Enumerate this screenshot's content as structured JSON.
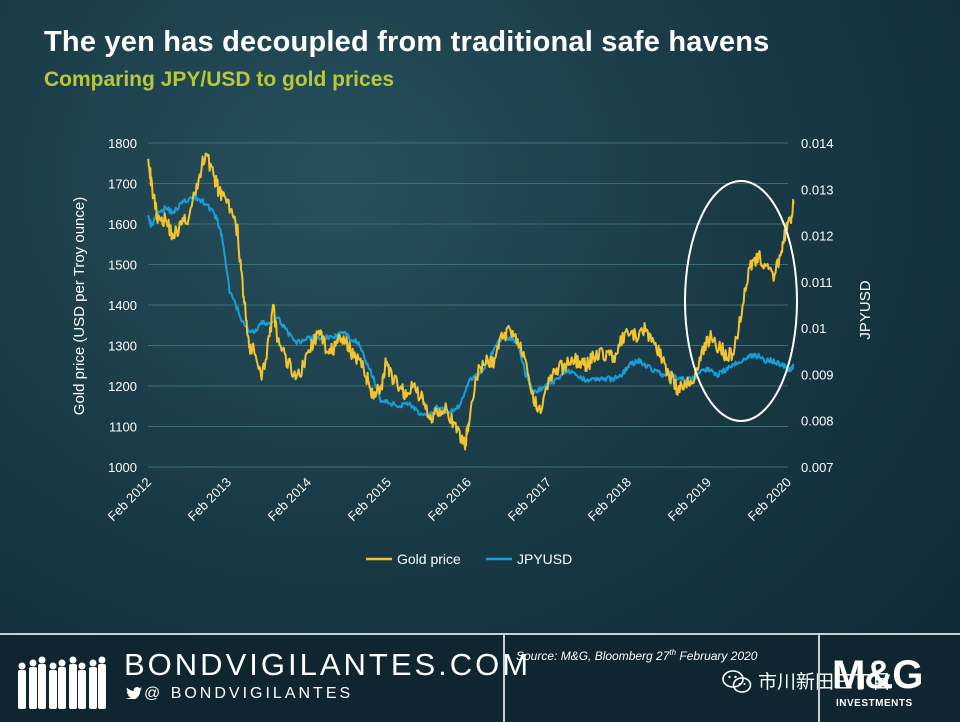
{
  "header": {
    "title": "The yen has decoupled from traditional safe havens",
    "subtitle": "Comparing JPY/USD to gold prices"
  },
  "colors": {
    "gold": "#f2c530",
    "jpyusd": "#1a9ed8",
    "subtitle": "#b8c83a",
    "grid": "#3f6f76"
  },
  "chart_data": {
    "type": "line",
    "ylabel": "Gold price (USD per Troy ounce)",
    "y2label": "JPYUSD",
    "ylim": [
      1000,
      1800
    ],
    "y2lim": [
      0.007,
      0.014
    ],
    "yticks": [
      "1000",
      "1100",
      "1200",
      "1300",
      "1400",
      "1500",
      "1600",
      "1700",
      "1800"
    ],
    "y2ticks": [
      "0.007",
      "0.008",
      "0.009",
      "0.01",
      "0.011",
      "0.012",
      "0.013",
      "0.014"
    ],
    "xticks": [
      "Feb 2012",
      "Feb 2013",
      "Feb 2014",
      "Feb 2015",
      "Feb 2016",
      "Feb 2017",
      "Feb 2018",
      "Feb 2019",
      "Feb 2020"
    ],
    "grid": "horizontal",
    "legend_position": "bottom-center",
    "annotation": "ellipse highlighting Feb 2019 – Feb 2020",
    "series": [
      {
        "name": "Gold price",
        "axis": "left",
        "x": [
          2012.08,
          2012.12,
          2012.2,
          2012.3,
          2012.4,
          2012.5,
          2012.6,
          2012.7,
          2012.8,
          2012.9,
          2012.95,
          2013.0,
          2013.1,
          2013.2,
          2013.25,
          2013.3,
          2013.35,
          2013.4,
          2013.5,
          2013.6,
          2013.65,
          2013.7,
          2013.8,
          2013.9,
          2014.0,
          2014.1,
          2014.2,
          2014.3,
          2014.4,
          2014.5,
          2014.6,
          2014.7,
          2014.8,
          2014.85,
          2014.9,
          2015.0,
          2015.05,
          2015.1,
          2015.2,
          2015.3,
          2015.4,
          2015.5,
          2015.6,
          2015.7,
          2015.8,
          2015.9,
          2016.0,
          2016.05,
          2016.1,
          2016.2,
          2016.3,
          2016.4,
          2016.5,
          2016.6,
          2016.7,
          2016.8,
          2016.9,
          2017.0,
          2017.1,
          2017.2,
          2017.3,
          2017.4,
          2017.5,
          2017.6,
          2017.7,
          2017.8,
          2017.9,
          2018.0,
          2018.1,
          2018.2,
          2018.3,
          2018.4,
          2018.5,
          2018.6,
          2018.7,
          2018.8,
          2018.9,
          2019.0,
          2019.1,
          2019.2,
          2019.3,
          2019.4,
          2019.5,
          2019.6,
          2019.7,
          2019.8,
          2019.9,
          2020.0,
          2020.05,
          2020.1,
          2020.15
        ],
        "values": [
          1780,
          1700,
          1620,
          1610,
          1570,
          1600,
          1620,
          1700,
          1780,
          1720,
          1690,
          1670,
          1640,
          1580,
          1470,
          1380,
          1280,
          1300,
          1210,
          1330,
          1390,
          1310,
          1270,
          1230,
          1240,
          1290,
          1330,
          1300,
          1290,
          1320,
          1290,
          1270,
          1230,
          1200,
          1180,
          1200,
          1250,
          1230,
          1200,
          1180,
          1200,
          1170,
          1120,
          1140,
          1150,
          1100,
          1070,
          1060,
          1130,
          1230,
          1260,
          1260,
          1320,
          1340,
          1320,
          1250,
          1160,
          1150,
          1220,
          1240,
          1250,
          1270,
          1250,
          1260,
          1280,
          1280,
          1270,
          1310,
          1330,
          1320,
          1340,
          1310,
          1270,
          1230,
          1190,
          1200,
          1220,
          1280,
          1320,
          1300,
          1280,
          1280,
          1390,
          1500,
          1520,
          1500,
          1460,
          1540,
          1580,
          1600,
          1650
        ]
      },
      {
        "name": "JPYUSD",
        "axis": "right",
        "x": [
          2012.08,
          2012.12,
          2012.2,
          2012.3,
          2012.4,
          2012.5,
          2012.6,
          2012.7,
          2012.8,
          2012.9,
          2012.95,
          2013.0,
          2013.1,
          2013.2,
          2013.3,
          2013.4,
          2013.5,
          2013.6,
          2013.7,
          2013.8,
          2013.9,
          2014.0,
          2014.1,
          2014.2,
          2014.3,
          2014.4,
          2014.5,
          2014.6,
          2014.7,
          2014.8,
          2014.9,
          2015.0,
          2015.1,
          2015.2,
          2015.3,
          2015.4,
          2015.5,
          2015.6,
          2015.7,
          2015.8,
          2015.9,
          2016.0,
          2016.1,
          2016.2,
          2016.3,
          2016.4,
          2016.5,
          2016.6,
          2016.7,
          2016.8,
          2016.9,
          2017.0,
          2017.1,
          2017.2,
          2017.3,
          2017.4,
          2017.5,
          2017.6,
          2017.7,
          2017.8,
          2017.9,
          2018.0,
          2018.1,
          2018.2,
          2018.3,
          2018.4,
          2018.5,
          2018.6,
          2018.7,
          2018.8,
          2018.9,
          2019.0,
          2019.1,
          2019.2,
          2019.3,
          2019.4,
          2019.5,
          2019.6,
          2019.7,
          2019.8,
          2019.9,
          2020.0,
          2020.05,
          2020.1,
          2020.15
        ],
        "values": [
          0.0125,
          0.0122,
          0.0125,
          0.0126,
          0.0125,
          0.0127,
          0.0128,
          0.0128,
          0.0127,
          0.0125,
          0.0123,
          0.012,
          0.0108,
          0.0104,
          0.01,
          0.0099,
          0.0101,
          0.0101,
          0.0102,
          0.01,
          0.0097,
          0.0097,
          0.0098,
          0.0098,
          0.0098,
          0.0098,
          0.0099,
          0.0098,
          0.0097,
          0.0093,
          0.0089,
          0.0084,
          0.0084,
          0.0083,
          0.0084,
          0.0083,
          0.0081,
          0.0081,
          0.0083,
          0.0082,
          0.0082,
          0.0084,
          0.0089,
          0.009,
          0.0092,
          0.0095,
          0.0098,
          0.0098,
          0.0097,
          0.009,
          0.0086,
          0.0087,
          0.0088,
          0.0089,
          0.0091,
          0.009,
          0.0089,
          0.0089,
          0.0089,
          0.0089,
          0.0089,
          0.009,
          0.0092,
          0.0093,
          0.0092,
          0.0091,
          0.009,
          0.009,
          0.0089,
          0.0089,
          0.0089,
          0.0091,
          0.0091,
          0.009,
          0.0091,
          0.0092,
          0.0093,
          0.0094,
          0.0094,
          0.0093,
          0.0093,
          0.0092,
          0.0092,
          0.0091,
          0.0092
        ]
      }
    ]
  },
  "footer": {
    "brand": "BONDVIGILANTES.COM",
    "handle": "@ BONDVIGILANTES",
    "source_prefix": "Source: M&G, Bloomberg 27",
    "source_sup": "th",
    "source_suffix": " February 2020",
    "wechat_text": "市川新田三丁目",
    "logo": "M&G",
    "logo_sub": "INVESTMENTS",
    "icons": [
      "people-silhouettes-icon",
      "twitter-bird-icon",
      "wechat-icon"
    ]
  }
}
